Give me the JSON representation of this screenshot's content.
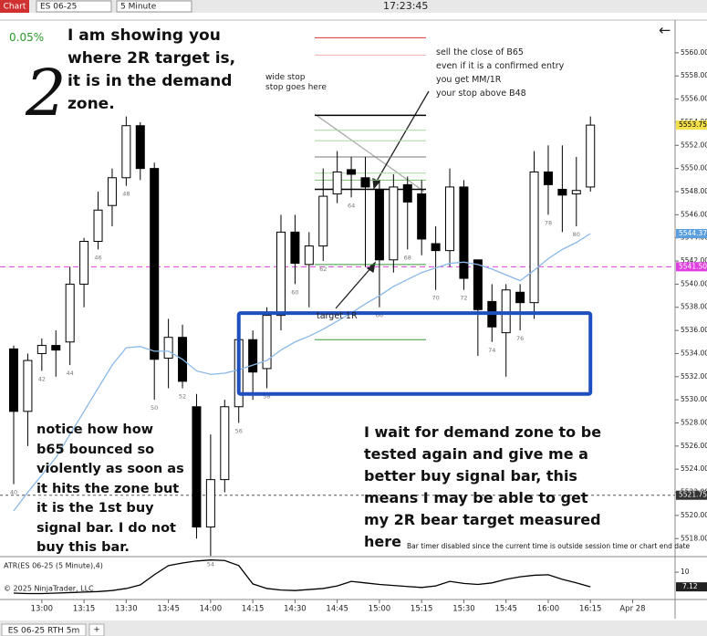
{
  "toolbar": {
    "app": "Chart",
    "instrument": "ES 06-25",
    "interval": "5 Minute",
    "clock": "17:23:45"
  },
  "tabs": {
    "active": "ES 06-25 RTH 5m",
    "add": "+"
  },
  "chart_data": {
    "type": "candlestick",
    "x": [
      "12:50",
      "12:55",
      "13:00",
      "13:05",
      "13:10",
      "13:15",
      "13:20",
      "13:25",
      "13:30",
      "13:35",
      "13:40",
      "13:45",
      "13:50",
      "13:55",
      "14:00",
      "14:05",
      "14:10",
      "14:15",
      "14:20",
      "14:25",
      "14:30",
      "14:35",
      "14:40",
      "14:45",
      "14:50",
      "14:55",
      "15:00",
      "15:05",
      "15:10",
      "15:15",
      "15:20",
      "15:25",
      "15:30",
      "15:35",
      "15:40",
      "15:45",
      "15:50",
      "15:55",
      "16:00",
      "16:05",
      "16:10",
      "16:15"
    ],
    "bar_labels": [
      "40",
      null,
      "42",
      null,
      "44",
      null,
      "46",
      null,
      "48",
      null,
      "50",
      null,
      "52",
      null,
      "54",
      null,
      "56",
      null,
      "58",
      null,
      "60",
      null,
      "62",
      null,
      "64",
      null,
      "66",
      null,
      "68",
      null,
      "70",
      null,
      "72",
      null,
      "74",
      null,
      "76",
      null,
      "78",
      null,
      "80",
      null
    ],
    "open": [
      5534.4,
      5529,
      5534,
      5534.7,
      5535,
      5540,
      5543.7,
      5546.8,
      5549.2,
      5553.7,
      5550,
      5533.6,
      5535.4,
      5529.4,
      5519,
      5523.1,
      5529.4,
      5535.2,
      5532.7,
      5537.3,
      5544.5,
      5541.7,
      5543.3,
      5547.8,
      5549.9,
      5549.2,
      5548.2,
      5542.1,
      5548.6,
      5547.8,
      5543.5,
      5542.9,
      5548.4,
      5542.1,
      5538.5,
      5535.8,
      5539.3,
      5538.4,
      5549.7,
      5548.2,
      5547.8,
      5548.4
    ],
    "high": [
      5534.7,
      5534,
      5535.3,
      5536,
      5541.5,
      5544,
      5548,
      5550,
      5554.5,
      5554,
      5550.5,
      5537,
      5536.5,
      5530.5,
      5527,
      5530,
      5536,
      5536,
      5538,
      5546,
      5546,
      5544.5,
      5550,
      5551.5,
      5551,
      5551,
      5549,
      5549.5,
      5549.3,
      5549,
      5545,
      5550,
      5549,
      5542,
      5540,
      5540,
      5540,
      5551.5,
      5552,
      5552,
      5551,
      5554.5
    ],
    "low": [
      5522.7,
      5526,
      5532.5,
      5532,
      5533,
      5538,
      5543,
      5545,
      5548.5,
      5549,
      5530,
      5531,
      5531,
      5518,
      5516.5,
      5522,
      5528,
      5530,
      5531,
      5536,
      5540,
      5538,
      5542,
      5547,
      5547.5,
      5541.5,
      5538,
      5541,
      5543,
      5542.5,
      5539.5,
      5541.5,
      5539.5,
      5533.8,
      5535,
      5532,
      5536,
      5537,
      5546,
      5544.5,
      5545,
      5548
    ],
    "close": [
      5529,
      5533.4,
      5534.7,
      5534.3,
      5540,
      5543.7,
      5546.4,
      5549.2,
      5553.7,
      5550,
      5533.5,
      5535.4,
      5531.6,
      5519,
      5523.1,
      5529.4,
      5535.2,
      5532.4,
      5537.3,
      5544.5,
      5541.8,
      5543.3,
      5547.6,
      5549.7,
      5549.5,
      5548.4,
      5542.1,
      5548.4,
      5547.1,
      5543.9,
      5542.9,
      5548.4,
      5540.5,
      5537.8,
      5536.3,
      5539.5,
      5538.4,
      5549.7,
      5548.6,
      5547.7,
      5548.1,
      5553.75
    ],
    "ema": {
      "color": "#8ab8e8",
      "values": [
        5520.4,
        5522,
        5523.5,
        5525,
        5527,
        5529,
        5531,
        5533,
        5534.5,
        5534.6,
        5534.2,
        5534.2,
        5533.5,
        5532.5,
        5532.2,
        5532.3,
        5532.6,
        5533,
        5533.4,
        5534.3,
        5535,
        5535.5,
        5536.1,
        5536.8,
        5537.5,
        5538.3,
        5539,
        5539.8,
        5540.4,
        5541,
        5541.4,
        5541.8,
        5541.9,
        5541.7,
        5541.3,
        5540.8,
        5540.3,
        5541.2,
        5542.2,
        5543,
        5543.6,
        5544.37
      ]
    },
    "ylim": [
      5516.6,
      5562.2
    ],
    "yticks": [
      {
        "value": 5518,
        "label": "5518.00"
      },
      {
        "value": 5520,
        "label": "5520.00"
      },
      {
        "value": 5522,
        "label": "5522.00"
      },
      {
        "value": 5524,
        "label": "5524.00"
      },
      {
        "value": 5526,
        "label": "5526.00"
      },
      {
        "value": 5528,
        "label": "5528.00"
      },
      {
        "value": 5530,
        "label": "5530.00"
      },
      {
        "value": 5532,
        "label": "5532.00"
      },
      {
        "value": 5534,
        "label": "5534.00"
      },
      {
        "value": 5536,
        "label": "5536.00"
      },
      {
        "value": 5538,
        "label": "5538.00"
      },
      {
        "value": 5540,
        "label": "5540.00"
      },
      {
        "value": 5542,
        "label": "5542.00"
      },
      {
        "value": 5544,
        "label": "5544.00"
      },
      {
        "value": 5546,
        "label": "5546.00"
      },
      {
        "value": 5548,
        "label": "5548.00"
      },
      {
        "value": 5550,
        "label": "5550.00"
      },
      {
        "value": 5552,
        "label": "5552.00"
      },
      {
        "value": 5554,
        "label": "5554.00"
      },
      {
        "value": 5556,
        "label": "5556.00"
      },
      {
        "value": 5558,
        "label": "5558.00"
      },
      {
        "value": 5560,
        "label": "5560.00"
      }
    ],
    "xticks": [
      "13:00",
      "13:15",
      "13:30",
      "13:45",
      "14:00",
      "14:15",
      "14:30",
      "14:45",
      "15:00",
      "15:15",
      "15:30",
      "15:45",
      "16:00",
      "16:15",
      {
        "value": "16:30",
        "label": "Apr 28"
      }
    ],
    "magenta_line": {
      "value": 5541.5,
      "label": "5541.50",
      "color": "#e040e0"
    },
    "dark_line": {
      "value": 5521.75,
      "color": "#555555"
    },
    "zone": {
      "from": "14:10",
      "to": "16:15",
      "low": 5530.5,
      "high": 5537.5,
      "color": "#1f4fbf"
    },
    "levels": [
      {
        "value": 5561.3,
        "color": "#e03030"
      },
      {
        "value": 5559.8,
        "color": "#f0b0b0"
      },
      {
        "value": 5554.6,
        "color": "#000000"
      },
      {
        "value": 5553.3,
        "color": "#a8d8a0"
      },
      {
        "value": 5552.4,
        "color": "#a8d8a0"
      },
      {
        "value": 5551,
        "color": "#777777"
      },
      {
        "value": 5549.6,
        "color": "#a8d8a0"
      },
      {
        "value": 5549,
        "color": "#7cc070"
      },
      {
        "value": 5548.2,
        "color": "#000000"
      },
      {
        "value": 5541.7,
        "color": "#3a9a3a"
      },
      {
        "value": 5535.2,
        "color": "#3a9a3a"
      }
    ],
    "atr": {
      "title": "ATR(ES 06-25 (5 Minute),4)",
      "ylim": [
        5,
        12.7
      ],
      "yticks": [
        10
      ],
      "values": [
        5.9,
        5.8,
        5.8,
        5.9,
        6,
        6.1,
        6.2,
        6.4,
        6.8,
        7.5,
        9.5,
        11.3,
        11.8,
        12.2,
        12.4,
        12.3,
        11.3,
        7.7,
        6.8,
        6.5,
        6.4,
        6.6,
        6.8,
        7.3,
        8.2,
        7.9,
        7.6,
        7.4,
        7.2,
        7,
        7.3,
        8.2,
        7.8,
        7.6,
        7.9,
        8.6,
        9.1,
        9.4,
        9.5,
        8.6,
        7.9,
        7.12
      ]
    }
  },
  "annotations": {
    "percent": "0.05%",
    "big_two": "2",
    "back_arrow": "←",
    "top_note": [
      "I am showing you",
      "where 2R target is,",
      "it is in the demand",
      "zone."
    ],
    "wide_stop": [
      "wide stop",
      "stop goes here"
    ],
    "sell_note": [
      "sell the close of B65",
      "even if it is a confirmed entry",
      "you get MM/1R",
      "your stop above B48"
    ],
    "target": "target 1R",
    "left_note": [
      "notice how how",
      "b65 bounced so",
      "violently as soon as",
      "it hits the zone but",
      "it is the 1st buy",
      "signal bar. I do not",
      "buy this bar."
    ],
    "right_note": [
      "I wait for demand zone to be",
      "tested again and give me a",
      "better buy signal bar, this",
      "means I may be able to get",
      "my 2R bear target measured",
      "here"
    ],
    "timer": "Bar timer disabled since the current time is outside session time or chart end date",
    "copyright": "© 2025 NinjaTrader, LLC"
  }
}
